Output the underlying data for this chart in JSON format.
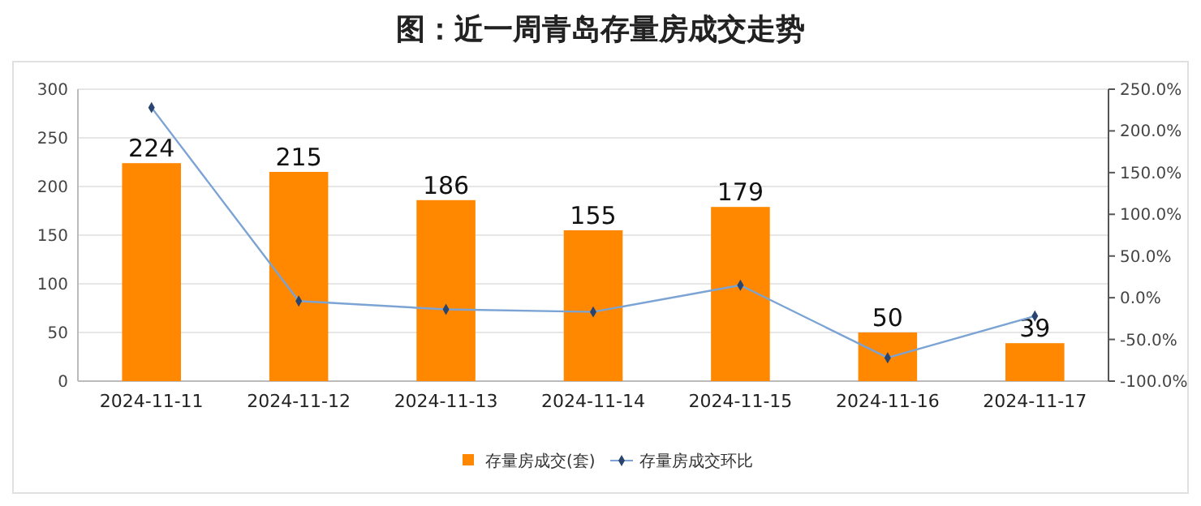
{
  "chart_data": {
    "type": "bar",
    "title": "图：近一周青岛存量房成交走势",
    "categories": [
      "2024-11-11",
      "2024-11-12",
      "2024-11-13",
      "2024-11-14",
      "2024-11-15",
      "2024-11-16",
      "2024-11-17"
    ],
    "series": [
      {
        "name": "存量房成交(套)",
        "color": "#ff8800",
        "values": [
          224,
          215,
          186,
          155,
          179,
          50,
          39
        ],
        "value_labels": [
          "224",
          "215",
          "186",
          "155",
          "179",
          "50",
          "39"
        ]
      },
      {
        "name": "存量房成交环比",
        "type": "line",
        "axis": "y2",
        "color": "#7ba4d4",
        "values": [
          228,
          -4,
          -14,
          -17,
          15,
          -72,
          -22
        ]
      }
    ],
    "marker": "diamond",
    "line_style": "solid",
    "ylim": [
      0,
      300
    ],
    "yticks": [
      0,
      50,
      100,
      150,
      200,
      250,
      300
    ],
    "y2lim": [
      -100,
      250
    ],
    "y2ticks": [
      {
        "value": -100,
        "label": "-100.0%"
      },
      {
        "value": -50,
        "label": "-50.0%"
      },
      {
        "value": 0,
        "label": "0.0%"
      },
      {
        "value": 50,
        "label": "50.0%"
      },
      {
        "value": 100,
        "label": "100.0%"
      },
      {
        "value": 150,
        "label": "150.0%"
      },
      {
        "value": 200,
        "label": "200.0%"
      },
      {
        "value": 250,
        "label": "250.0%"
      }
    ],
    "grid": "y",
    "legend": "bottom"
  }
}
